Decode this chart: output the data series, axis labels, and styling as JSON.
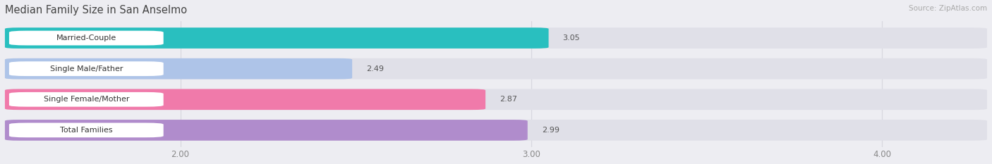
{
  "title": "Median Family Size in San Anselmo",
  "source": "Source: ZipAtlas.com",
  "categories": [
    "Married-Couple",
    "Single Male/Father",
    "Single Female/Mother",
    "Total Families"
  ],
  "values": [
    3.05,
    2.49,
    2.87,
    2.99
  ],
  "bar_colors": [
    "#29bfbf",
    "#aec4e8",
    "#f07aaa",
    "#b08ccc"
  ],
  "xlim_left": 1.5,
  "xlim_right": 4.3,
  "xticks": [
    2.0,
    3.0,
    4.0
  ],
  "xtick_labels": [
    "2.00",
    "3.00",
    "4.00"
  ],
  "background_color": "#ededf2",
  "bar_background_color": "#e0e0e8",
  "label_box_color": "#ffffff",
  "value_label_color": "#555555",
  "title_color": "#444444",
  "source_color": "#aaaaaa",
  "grid_color": "#d8d8e0"
}
